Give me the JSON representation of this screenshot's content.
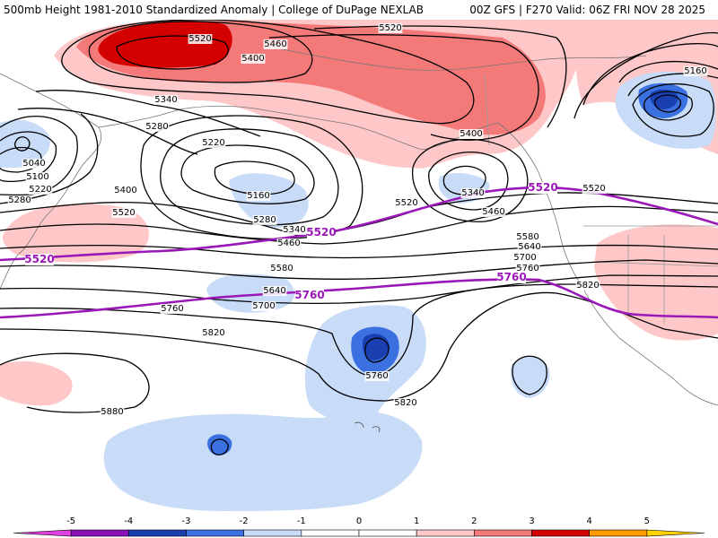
{
  "header": {
    "left": "500mb Height 1981-2010 Standardized Anomaly | College of DuPage NEXLAB",
    "right": "00Z GFS | F270 Valid: 06Z FRI NOV 28 2025"
  },
  "legend": {
    "ticks": [
      "-5",
      "-4",
      "-3",
      "-2",
      "-1",
      "0",
      "1",
      "2",
      "3",
      "4",
      "5"
    ],
    "colors": [
      "#e040e0",
      "#8a10b8",
      "#1a3fb0",
      "#3a70e0",
      "#c8dcf8",
      "#ffffff",
      "#ffffff",
      "#ffc8c8",
      "#f47a7a",
      "#d40000",
      "#ff9a00",
      "#ffd200"
    ]
  },
  "map": {
    "anomaly_colors": {
      "pos1": "#ffc8c8",
      "pos2": "#f47a7a",
      "pos3": "#d40000",
      "neg1": "#c8dcf8",
      "neg2": "#3a70e0",
      "neg3": "#1a3fb0"
    },
    "contour_labels": [
      {
        "text": "5520"
      },
      {
        "text": "5460"
      },
      {
        "text": "5400"
      },
      {
        "text": "5520"
      },
      {
        "text": "5340"
      },
      {
        "text": "5280"
      },
      {
        "text": "5220"
      },
      {
        "text": "5160"
      },
      {
        "text": "5040"
      },
      {
        "text": "5100"
      },
      {
        "text": "5220"
      },
      {
        "text": "5280"
      },
      {
        "text": "5400"
      },
      {
        "text": "5520"
      },
      {
        "text": "5280"
      },
      {
        "text": "5340"
      },
      {
        "text": "5460"
      },
      {
        "text": "5580"
      },
      {
        "text": "5640"
      },
      {
        "text": "5700"
      },
      {
        "text": "5760"
      },
      {
        "text": "5820"
      },
      {
        "text": "5880"
      },
      {
        "text": "5400"
      },
      {
        "text": "5340"
      },
      {
        "text": "5520"
      },
      {
        "text": "5460"
      },
      {
        "text": "5520"
      },
      {
        "text": "5580"
      },
      {
        "text": "5640"
      },
      {
        "text": "5700"
      },
      {
        "text": "5760"
      },
      {
        "text": "5760"
      },
      {
        "text": "5820"
      },
      {
        "text": "5820"
      },
      {
        "text": "5160"
      }
    ],
    "highlight_labels": [
      {
        "text": "5520"
      },
      {
        "text": "5520"
      },
      {
        "text": "5520"
      },
      {
        "text": "5760"
      },
      {
        "text": "5760"
      }
    ]
  }
}
